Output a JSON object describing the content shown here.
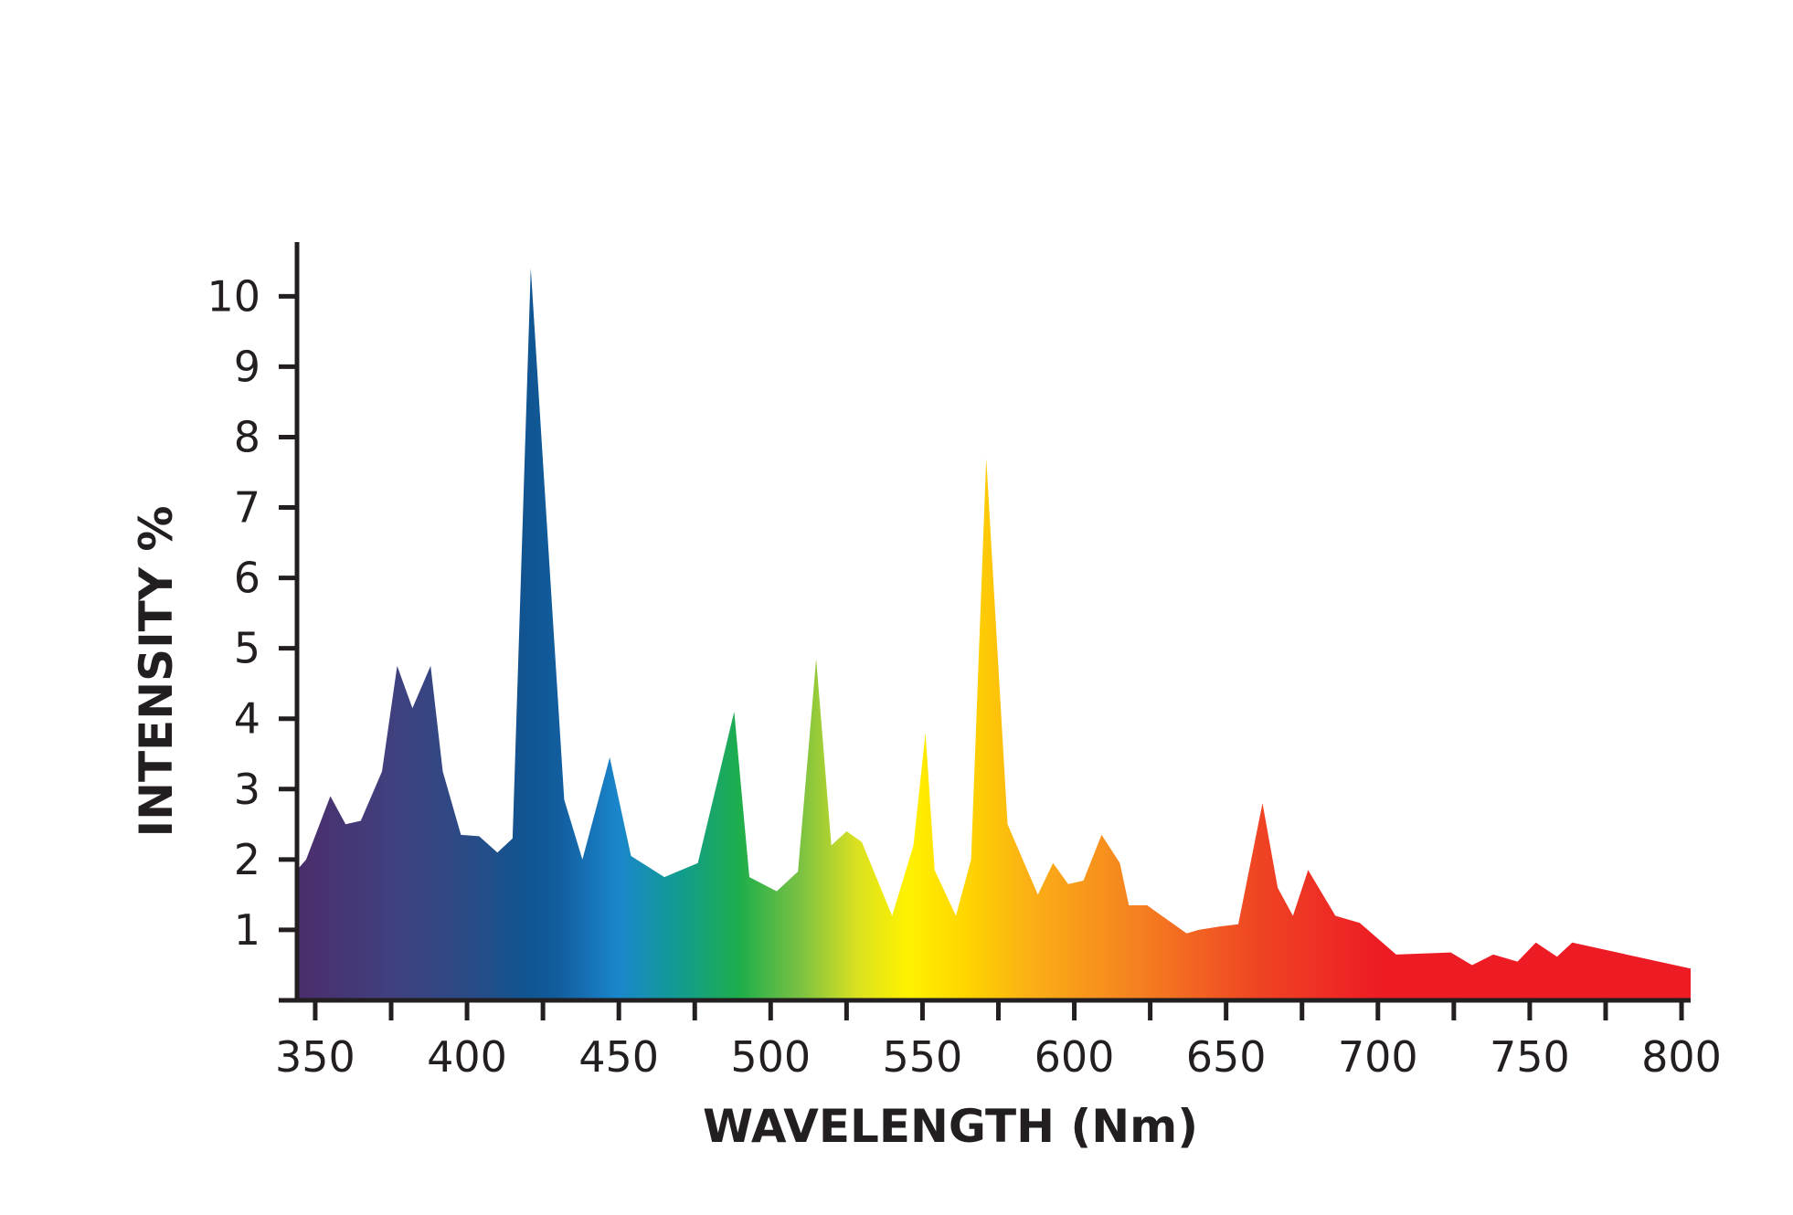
{
  "chart_data": {
    "type": "area",
    "title": "",
    "xlabel": "WAVELENGTH (Nm)",
    "ylabel": "INTENSITY %",
    "xlim": [
      344,
      803
    ],
    "ylim": [
      0,
      10.9
    ],
    "x_ticks": [
      350,
      400,
      450,
      500,
      550,
      600,
      650,
      700,
      750,
      800
    ],
    "x_minor_ticks": [
      375,
      425,
      475,
      525,
      575,
      625,
      675,
      725,
      775
    ],
    "y_ticks": [
      1,
      2,
      3,
      4,
      5,
      6,
      7,
      8,
      9,
      10
    ],
    "grid": false,
    "legend": "none",
    "series": [
      {
        "values": [
          [
            344,
            0
          ],
          [
            344,
            1.85
          ],
          [
            347,
            2.0
          ],
          [
            355,
            2.9
          ],
          [
            360,
            2.5
          ],
          [
            365,
            2.55
          ],
          [
            372,
            3.25
          ],
          [
            377,
            4.75
          ],
          [
            382,
            4.15
          ],
          [
            388,
            4.75
          ],
          [
            392,
            3.25
          ],
          [
            398,
            2.35
          ],
          [
            404,
            2.33
          ],
          [
            410,
            2.1
          ],
          [
            415,
            2.3
          ],
          [
            421,
            10.4
          ],
          [
            432,
            2.85
          ],
          [
            438,
            2.0
          ],
          [
            447,
            3.45
          ],
          [
            454,
            2.05
          ],
          [
            465,
            1.75
          ],
          [
            476,
            1.95
          ],
          [
            488,
            4.1
          ],
          [
            493,
            1.75
          ],
          [
            502,
            1.55
          ],
          [
            509,
            1.83
          ],
          [
            515,
            4.85
          ],
          [
            520,
            2.2
          ],
          [
            525,
            2.4
          ],
          [
            530,
            2.25
          ],
          [
            540,
            1.2
          ],
          [
            547,
            2.2
          ],
          [
            551,
            3.8
          ],
          [
            554,
            1.85
          ],
          [
            561,
            1.2
          ],
          [
            566,
            2.0
          ],
          [
            571,
            7.7
          ],
          [
            578,
            2.5
          ],
          [
            588,
            1.5
          ],
          [
            593,
            1.95
          ],
          [
            598,
            1.65
          ],
          [
            603,
            1.7
          ],
          [
            609,
            2.35
          ],
          [
            615,
            1.95
          ],
          [
            618,
            1.35
          ],
          [
            624,
            1.35
          ],
          [
            637,
            0.95
          ],
          [
            641,
            1.0
          ],
          [
            648,
            1.05
          ],
          [
            654,
            1.08
          ],
          [
            662,
            2.8
          ],
          [
            667,
            1.6
          ],
          [
            672,
            1.2
          ],
          [
            677,
            1.85
          ],
          [
            686,
            1.2
          ],
          [
            694,
            1.1
          ],
          [
            706,
            0.65
          ],
          [
            724,
            0.68
          ],
          [
            731,
            0.5
          ],
          [
            738,
            0.65
          ],
          [
            746,
            0.55
          ],
          [
            752,
            0.82
          ],
          [
            759,
            0.62
          ],
          [
            764,
            0.82
          ],
          [
            803,
            0.45
          ],
          [
            803,
            0
          ]
        ]
      }
    ],
    "colors": {
      "axis": "#231f20",
      "gradient_stops": [
        {
          "x": 344,
          "color": "#4b2d6b"
        },
        {
          "x": 375,
          "color": "#41407f"
        },
        {
          "x": 400,
          "color": "#2b4b86"
        },
        {
          "x": 420,
          "color": "#0f5591"
        },
        {
          "x": 430,
          "color": "#125d9e"
        },
        {
          "x": 450,
          "color": "#1a86cc"
        },
        {
          "x": 470,
          "color": "#119c8f"
        },
        {
          "x": 490,
          "color": "#1fae4b"
        },
        {
          "x": 510,
          "color": "#7cc242"
        },
        {
          "x": 528,
          "color": "#d9e021"
        },
        {
          "x": 545,
          "color": "#fff200"
        },
        {
          "x": 565,
          "color": "#ffd400"
        },
        {
          "x": 585,
          "color": "#fbb015"
        },
        {
          "x": 620,
          "color": "#f58220"
        },
        {
          "x": 660,
          "color": "#ef4523"
        },
        {
          "x": 700,
          "color": "#ed1c24"
        },
        {
          "x": 803,
          "color": "#ed1c24"
        }
      ]
    }
  }
}
